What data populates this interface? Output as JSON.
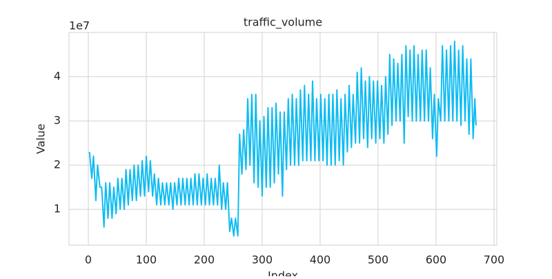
{
  "chart_data": {
    "type": "line",
    "title": "traffic_volume",
    "x_label": "Index",
    "y_label": "Value",
    "y_offset_label": "1e7",
    "xlim": [
      -33.3,
      704.8
    ],
    "ylim": [
      0.19,
      5.0
    ],
    "xticks": [
      0,
      100,
      200,
      300,
      400,
      500,
      600,
      700
    ],
    "yticks": [
      1,
      2,
      3,
      4
    ],
    "grid": true,
    "x": [
      2,
      6,
      9,
      13,
      16,
      20,
      23,
      27,
      30,
      34,
      37,
      41,
      44,
      48,
      51,
      55,
      58,
      62,
      65,
      69,
      72,
      76,
      79,
      83,
      86,
      90,
      93,
      97,
      100,
      104,
      107,
      111,
      114,
      118,
      121,
      125,
      128,
      132,
      135,
      139,
      142,
      146,
      149,
      153,
      156,
      160,
      163,
      167,
      170,
      174,
      177,
      181,
      184,
      188,
      191,
      195,
      198,
      202,
      205,
      209,
      212,
      216,
      219,
      223,
      226,
      230,
      233,
      237,
      240,
      244,
      247,
      251,
      254,
      258,
      261,
      265,
      268,
      272,
      275,
      279,
      282,
      286,
      289,
      293,
      296,
      300,
      303,
      307,
      310,
      314,
      317,
      321,
      324,
      328,
      331,
      335,
      338,
      342,
      345,
      349,
      352,
      356,
      359,
      363,
      366,
      370,
      373,
      377,
      380,
      384,
      387,
      391,
      394,
      398,
      401,
      405,
      408,
      412,
      415,
      419,
      422,
      426,
      429,
      433,
      436,
      440,
      443,
      447,
      450,
      454,
      457,
      461,
      464,
      468,
      471,
      475,
      478,
      482,
      485,
      489,
      492,
      496,
      499,
      503,
      506,
      510,
      513,
      517,
      520,
      524,
      527,
      531,
      534,
      538,
      541,
      545,
      548,
      552,
      555,
      559,
      562,
      566,
      569,
      573,
      576,
      580,
      583,
      587,
      590,
      594,
      597,
      601,
      604,
      608,
      611,
      615,
      618,
      622,
      625,
      629,
      632,
      636,
      639,
      643,
      646,
      650,
      653,
      657,
      660,
      664,
      667,
      669
    ],
    "series": [
      {
        "name": "traffic_volume",
        "color": "#0fbcf2",
        "values": [
          2.3,
          1.7,
          2.2,
          1.2,
          2.0,
          1.5,
          1.5,
          0.6,
          1.6,
          0.8,
          1.6,
          0.8,
          1.5,
          0.9,
          1.7,
          1.0,
          1.7,
          1.0,
          1.9,
          1.1,
          1.9,
          1.2,
          2.0,
          1.2,
          2.0,
          1.3,
          2.1,
          1.3,
          2.2,
          1.4,
          2.1,
          1.3,
          1.8,
          1.1,
          1.7,
          1.1,
          1.6,
          1.1,
          1.6,
          1.1,
          1.6,
          1.0,
          1.6,
          1.1,
          1.7,
          1.1,
          1.7,
          1.1,
          1.7,
          1.1,
          1.7,
          1.1,
          1.8,
          1.1,
          1.8,
          1.1,
          1.7,
          1.1,
          1.8,
          1.1,
          1.7,
          1.1,
          1.7,
          1.1,
          2.0,
          1.0,
          1.6,
          1.0,
          1.6,
          0.5,
          0.8,
          0.4,
          0.8,
          0.4,
          2.7,
          1.8,
          2.8,
          1.9,
          3.5,
          2.0,
          3.6,
          1.6,
          3.6,
          1.5,
          3.0,
          1.3,
          3.1,
          1.5,
          3.3,
          1.5,
          3.3,
          1.6,
          3.4,
          1.8,
          3.2,
          1.3,
          3.2,
          1.9,
          3.5,
          2.0,
          3.6,
          2.0,
          3.5,
          2.0,
          3.7,
          2.1,
          3.8,
          2.1,
          3.6,
          2.1,
          3.9,
          2.1,
          3.5,
          2.1,
          3.6,
          2.1,
          3.5,
          2.0,
          3.6,
          2.0,
          3.6,
          2.0,
          3.7,
          2.1,
          3.5,
          2.0,
          3.6,
          2.3,
          3.8,
          2.4,
          3.6,
          2.5,
          4.1,
          2.5,
          4.2,
          2.6,
          3.9,
          2.4,
          4.0,
          2.6,
          3.9,
          2.5,
          3.9,
          2.6,
          3.8,
          2.5,
          4.0,
          2.7,
          4.5,
          2.9,
          4.4,
          3.0,
          4.3,
          3.0,
          4.5,
          2.5,
          4.7,
          3.1,
          4.6,
          3.0,
          4.7,
          3.0,
          4.5,
          3.0,
          4.6,
          3.0,
          4.6,
          3.0,
          4.2,
          2.6,
          3.6,
          2.2,
          3.5,
          3.0,
          4.7,
          3.0,
          4.6,
          3.0,
          4.7,
          3.0,
          4.8,
          3.0,
          4.6,
          2.9,
          4.7,
          3.0,
          4.4,
          2.7,
          4.4,
          2.6,
          3.5,
          2.9
        ]
      }
    ]
  }
}
